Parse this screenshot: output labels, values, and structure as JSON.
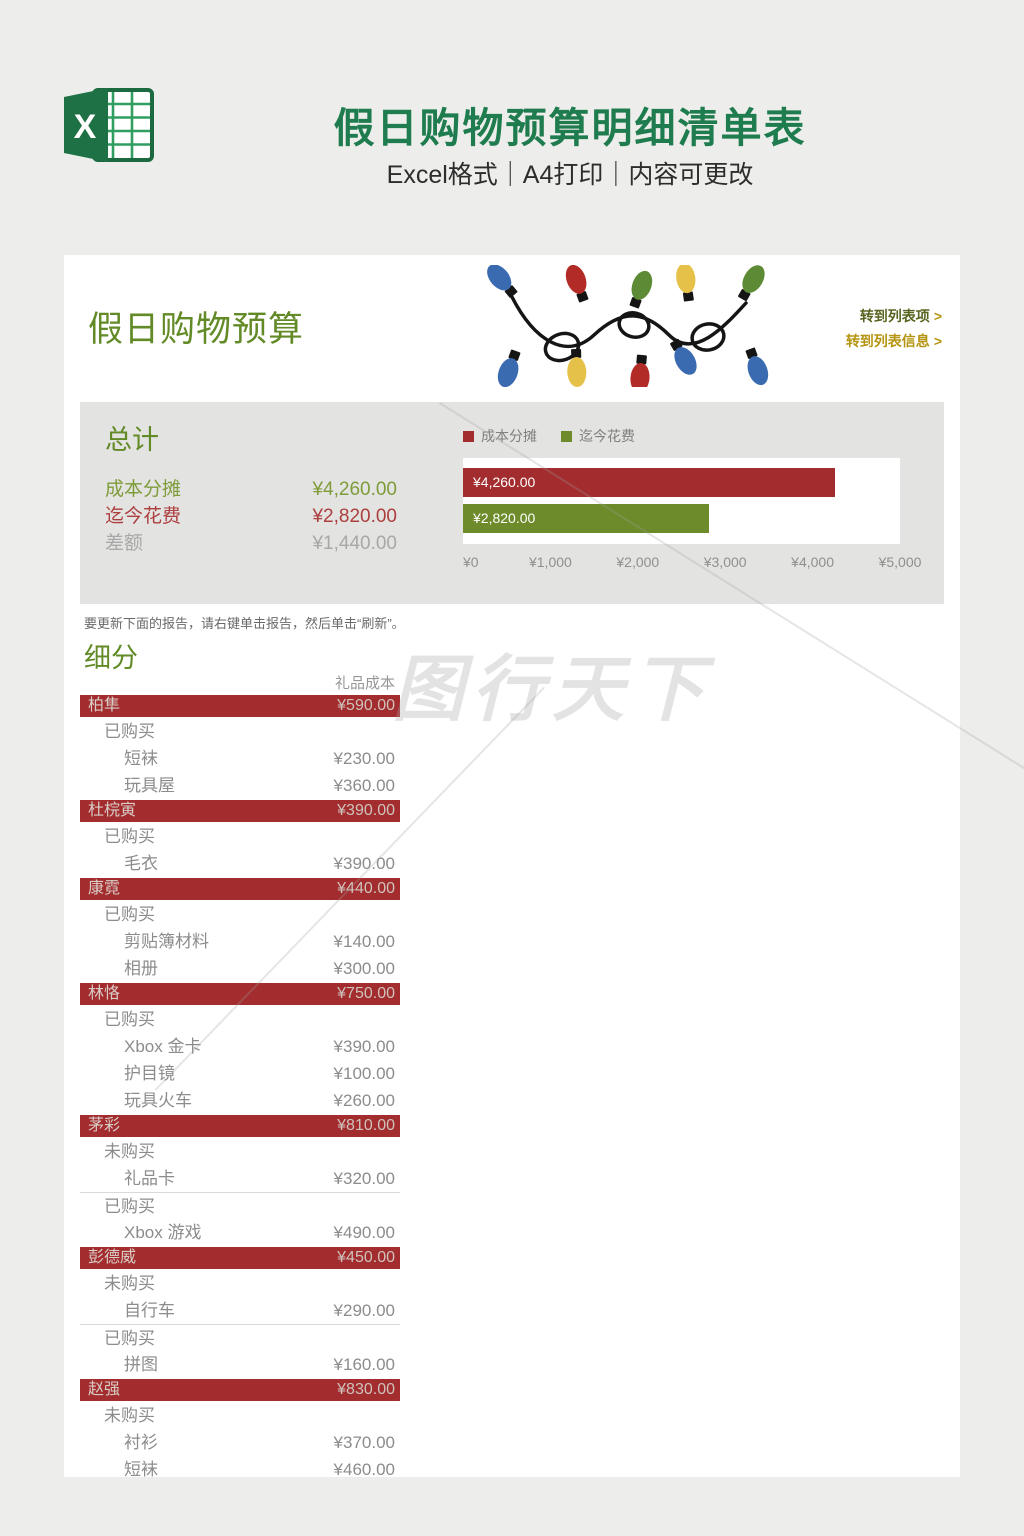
{
  "page": {
    "title": "假日购物预算明细清单表",
    "subtitle": "Excel格式｜A4打印｜内容可更改"
  },
  "card": {
    "title": "假日购物预算",
    "links": [
      {
        "label": "转到列表项",
        "arrow": ">"
      },
      {
        "label": "转到列表信息",
        "arrow": ">"
      }
    ],
    "summary": {
      "heading": "总计",
      "stats": [
        {
          "label": "成本分摊",
          "value": "¥4,260.00",
          "color": "#7f9c3a"
        },
        {
          "label": "迄今花费",
          "value": "¥2,820.00",
          "color": "#ad3e3e"
        },
        {
          "label": "差额",
          "value": "¥1,440.00",
          "color": "#a8a8a8"
        }
      ]
    },
    "note": "要更新下面的报告，请右键单击报告，然后单击“刷新”。",
    "breakdown_heading": "细分",
    "breakdown": {
      "column_header": "礼品成本",
      "groups": [
        {
          "name": "柏隼",
          "total": "¥590.00",
          "sections": [
            {
              "label": "已购买",
              "items": [
                {
                  "item": "短袜",
                  "cost": "¥230.00"
                },
                {
                  "item": "玩具屋",
                  "cost": "¥360.00"
                }
              ]
            }
          ]
        },
        {
          "name": "杜梡寅",
          "total": "¥390.00",
          "sections": [
            {
              "label": "已购买",
              "items": [
                {
                  "item": "毛衣",
                  "cost": "¥390.00"
                }
              ]
            }
          ]
        },
        {
          "name": "康霓",
          "total": "¥440.00",
          "sections": [
            {
              "label": "已购买",
              "items": [
                {
                  "item": "剪贴簿材料",
                  "cost": "¥140.00"
                },
                {
                  "item": "相册",
                  "cost": "¥300.00"
                }
              ]
            }
          ]
        },
        {
          "name": "林恪",
          "total": "¥750.00",
          "sections": [
            {
              "label": "已购买",
              "items": [
                {
                  "item": "Xbox 金卡",
                  "cost": "¥390.00"
                },
                {
                  "item": "护目镜",
                  "cost": "¥100.00"
                },
                {
                  "item": "玩具火车",
                  "cost": "¥260.00"
                }
              ]
            }
          ]
        },
        {
          "name": "茅彩",
          "total": "¥810.00",
          "sections": [
            {
              "label": "未购买",
              "items": [
                {
                  "item": "礼品卡",
                  "cost": "¥320.00"
                }
              ]
            },
            {
              "label": "已购买",
              "items": [
                {
                  "item": "Xbox 游戏",
                  "cost": "¥490.00"
                }
              ]
            }
          ]
        },
        {
          "name": "彭德威",
          "total": "¥450.00",
          "sections": [
            {
              "label": "未购买",
              "items": [
                {
                  "item": "自行车",
                  "cost": "¥290.00"
                }
              ]
            },
            {
              "label": "已购买",
              "items": [
                {
                  "item": "拼图",
                  "cost": "¥160.00"
                }
              ]
            }
          ]
        },
        {
          "name": "赵强",
          "total": "¥830.00",
          "sections": [
            {
              "label": "未购买",
              "items": [
                {
                  "item": "衬衫",
                  "cost": "¥370.00"
                },
                {
                  "item": "短袜",
                  "cost": "¥460.00"
                }
              ]
            }
          ]
        }
      ]
    }
  },
  "chart_data": {
    "type": "bar",
    "orientation": "horizontal",
    "categories": [
      "成本分摊",
      "迄今花费"
    ],
    "values": [
      4260,
      2820
    ],
    "bar_labels": [
      "¥4,260.00",
      "¥2,820.00"
    ],
    "colors": [
      "#a32c2e",
      "#6d8b2a"
    ],
    "legend": [
      "成本分摊",
      "迄今花费"
    ],
    "legend_position": "top-left",
    "xlim": [
      0,
      5000
    ],
    "x_ticks": [
      "¥0",
      "¥1,000",
      "¥2,000",
      "¥3,000",
      "¥4,000",
      "¥5,000"
    ],
    "grid": false,
    "plot_background": "#ffffff",
    "panel_background": "#e3e3e1"
  },
  "icons": {
    "excel_logo": "Microsoft Excel logo (green X + spreadsheet)",
    "christmas_lights": "string of colored holiday light bulbs"
  },
  "watermark": {
    "text": "图行天下"
  },
  "colors": {
    "title_green": "#1e7c4e",
    "heading_olive": "#628a26",
    "accent_red": "#a32c2e",
    "accent_green": "#6d8b2a",
    "link_gold": "#b5940f",
    "page_background": "#ededeb",
    "card_background": "#ffffff"
  }
}
